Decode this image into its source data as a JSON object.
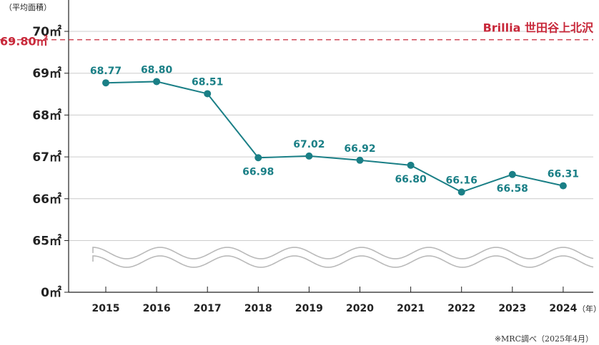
{
  "chart_data": {
    "type": "line",
    "ylabel": "（平均面積）",
    "xunit": "（年）",
    "categories": [
      "2015",
      "2016",
      "2017",
      "2018",
      "2019",
      "2020",
      "2021",
      "2022",
      "2023",
      "2024"
    ],
    "series": [
      {
        "values": [
          68.77,
          68.8,
          68.51,
          66.98,
          67.02,
          66.92,
          66.8,
          66.16,
          66.58,
          66.31
        ],
        "labels": [
          "68.77",
          "68.80",
          "68.51",
          "66.98",
          "67.02",
          "66.92",
          "66.80",
          "66.16",
          "66.58",
          "66.31"
        ],
        "label_positions": [
          "above",
          "above",
          "above",
          "below",
          "above",
          "above",
          "below",
          "above",
          "below",
          "above"
        ]
      }
    ],
    "yticks": [
      {
        "value": 70,
        "label": "70㎡"
      },
      {
        "value": 69,
        "label": "69㎡"
      },
      {
        "value": 68,
        "label": "68㎡"
      },
      {
        "value": 67,
        "label": "67㎡"
      },
      {
        "value": 66,
        "label": "66㎡"
      },
      {
        "value": 65,
        "label": "65㎡"
      },
      {
        "value": 0,
        "label": "0㎡"
      }
    ],
    "axis_break": {
      "between": [
        0,
        65
      ]
    },
    "ylim": [
      65,
      70.7
    ],
    "grid": true,
    "reference_line": {
      "value": 69.8,
      "label": "69.80㎡",
      "name": "Brillia 世田谷上北沢"
    },
    "colors": {
      "series": "#1a7f86",
      "reference": "#c8283a",
      "grid": "#cccccc",
      "axis": "#222222",
      "break": "#b9b9b9"
    }
  },
  "source_note": "※MRC調べ（2025年4月）"
}
